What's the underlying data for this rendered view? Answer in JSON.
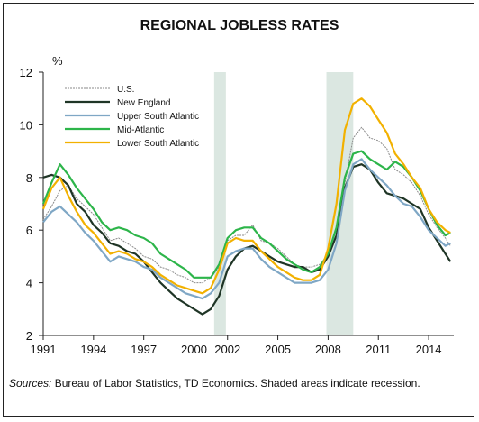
{
  "chart_data": {
    "type": "line",
    "title": "REGIONAL JOBLESS RATES",
    "ylabel": "%",
    "xlabel": "",
    "xlim": [
      1991,
      2015.5
    ],
    "ylim": [
      2,
      12
    ],
    "x_ticks": [
      1991,
      1994,
      1997,
      2000,
      2002,
      2005,
      2008,
      2011,
      2014
    ],
    "x_tick_labels": [
      "1991",
      "1994",
      "1997",
      "2000",
      "2002",
      "2005",
      "2008",
      "2011",
      "2014"
    ],
    "y_ticks": [
      2,
      4,
      6,
      8,
      10,
      12
    ],
    "y_tick_labels": [
      "2",
      "4",
      "6",
      "8",
      "10",
      "12"
    ],
    "grid": false,
    "legend_position": "top-left",
    "recessions": [
      [
        2001.2,
        2001.9
      ],
      [
        2007.9,
        2009.5
      ]
    ],
    "recession_color": "#dbe7e1",
    "source_label": "Sources:",
    "source_text": " Bureau of Labor Statistics, TD Economics. Shaded areas indicate recession.",
    "series": [
      {
        "name": "U.S.",
        "color": "#8a8a8a",
        "dash": "2,1",
        "width": 1,
        "points": [
          [
            1991,
            6.4
          ],
          [
            1991.5,
            6.9
          ],
          [
            1992,
            7.5
          ],
          [
            1992.5,
            7.7
          ],
          [
            1993,
            7.2
          ],
          [
            1993.5,
            6.9
          ],
          [
            1994,
            6.6
          ],
          [
            1994.5,
            6.1
          ],
          [
            1995,
            5.6
          ],
          [
            1995.5,
            5.7
          ],
          [
            1996,
            5.5
          ],
          [
            1996.5,
            5.3
          ],
          [
            1997,
            5.0
          ],
          [
            1997.5,
            4.9
          ],
          [
            1998,
            4.6
          ],
          [
            1998.5,
            4.5
          ],
          [
            1999,
            4.3
          ],
          [
            1999.5,
            4.2
          ],
          [
            2000,
            4.0
          ],
          [
            2000.5,
            4.0
          ],
          [
            2001,
            4.2
          ],
          [
            2001.5,
            4.6
          ],
          [
            2002,
            5.6
          ],
          [
            2002.5,
            5.8
          ],
          [
            2003,
            5.8
          ],
          [
            2003.5,
            6.2
          ],
          [
            2004,
            5.6
          ],
          [
            2004.5,
            5.5
          ],
          [
            2005,
            5.3
          ],
          [
            2005.5,
            5.0
          ],
          [
            2006,
            4.7
          ],
          [
            2006.5,
            4.6
          ],
          [
            2007,
            4.6
          ],
          [
            2007.5,
            4.7
          ],
          [
            2008,
            5.0
          ],
          [
            2008.5,
            5.8
          ],
          [
            2009,
            7.8
          ],
          [
            2009.5,
            9.5
          ],
          [
            2010,
            9.9
          ],
          [
            2010.5,
            9.5
          ],
          [
            2011,
            9.4
          ],
          [
            2011.5,
            9.1
          ],
          [
            2012,
            8.3
          ],
          [
            2012.5,
            8.1
          ],
          [
            2013,
            7.8
          ],
          [
            2013.5,
            7.3
          ],
          [
            2014,
            6.6
          ],
          [
            2014.5,
            6.1
          ],
          [
            2015,
            5.7
          ],
          [
            2015.3,
            5.4
          ]
        ]
      },
      {
        "name": "New England",
        "color": "#1f3526",
        "dash": "",
        "width": 2.2,
        "points": [
          [
            1991,
            8.0
          ],
          [
            1991.5,
            8.1
          ],
          [
            1992,
            8.0
          ],
          [
            1992.5,
            7.7
          ],
          [
            1993,
            7.0
          ],
          [
            1993.5,
            6.7
          ],
          [
            1994,
            6.2
          ],
          [
            1994.5,
            5.9
          ],
          [
            1995,
            5.5
          ],
          [
            1995.5,
            5.4
          ],
          [
            1996,
            5.2
          ],
          [
            1996.5,
            5.1
          ],
          [
            1997,
            4.8
          ],
          [
            1997.5,
            4.4
          ],
          [
            1998,
            4.0
          ],
          [
            1998.5,
            3.7
          ],
          [
            1999,
            3.4
          ],
          [
            1999.5,
            3.2
          ],
          [
            2000,
            3.0
          ],
          [
            2000.5,
            2.8
          ],
          [
            2001,
            3.0
          ],
          [
            2001.5,
            3.5
          ],
          [
            2002,
            4.5
          ],
          [
            2002.5,
            5.0
          ],
          [
            2003,
            5.3
          ],
          [
            2003.5,
            5.4
          ],
          [
            2004,
            5.2
          ],
          [
            2004.5,
            5.0
          ],
          [
            2005,
            4.8
          ],
          [
            2005.5,
            4.7
          ],
          [
            2006,
            4.6
          ],
          [
            2006.5,
            4.6
          ],
          [
            2007,
            4.4
          ],
          [
            2007.5,
            4.5
          ],
          [
            2008,
            5.0
          ],
          [
            2008.5,
            5.8
          ],
          [
            2009,
            7.6
          ],
          [
            2009.5,
            8.4
          ],
          [
            2010,
            8.5
          ],
          [
            2010.5,
            8.3
          ],
          [
            2011,
            7.8
          ],
          [
            2011.5,
            7.4
          ],
          [
            2012,
            7.3
          ],
          [
            2012.5,
            7.2
          ],
          [
            2013,
            7.0
          ],
          [
            2013.5,
            6.8
          ],
          [
            2014,
            6.1
          ],
          [
            2014.5,
            5.6
          ],
          [
            2015,
            5.1
          ],
          [
            2015.3,
            4.8
          ]
        ]
      },
      {
        "name": "Upper South Atlantic",
        "color": "#7fa7c5",
        "dash": "",
        "width": 2.2,
        "points": [
          [
            1991,
            6.3
          ],
          [
            1991.5,
            6.7
          ],
          [
            1992,
            6.9
          ],
          [
            1992.5,
            6.6
          ],
          [
            1993,
            6.3
          ],
          [
            1993.5,
            5.9
          ],
          [
            1994,
            5.6
          ],
          [
            1994.5,
            5.2
          ],
          [
            1995,
            4.8
          ],
          [
            1995.5,
            5.0
          ],
          [
            1996,
            4.9
          ],
          [
            1996.5,
            4.8
          ],
          [
            1997,
            4.6
          ],
          [
            1997.5,
            4.5
          ],
          [
            1998,
            4.2
          ],
          [
            1998.5,
            4.0
          ],
          [
            1999,
            3.8
          ],
          [
            1999.5,
            3.6
          ],
          [
            2000,
            3.5
          ],
          [
            2000.5,
            3.4
          ],
          [
            2001,
            3.6
          ],
          [
            2001.5,
            4.0
          ],
          [
            2002,
            5.0
          ],
          [
            2002.5,
            5.2
          ],
          [
            2003,
            5.3
          ],
          [
            2003.5,
            5.3
          ],
          [
            2004,
            4.9
          ],
          [
            2004.5,
            4.6
          ],
          [
            2005,
            4.4
          ],
          [
            2005.5,
            4.2
          ],
          [
            2006,
            4.0
          ],
          [
            2006.5,
            4.0
          ],
          [
            2007,
            4.0
          ],
          [
            2007.5,
            4.1
          ],
          [
            2008,
            4.5
          ],
          [
            2008.5,
            5.5
          ],
          [
            2009,
            7.5
          ],
          [
            2009.5,
            8.5
          ],
          [
            2010,
            8.7
          ],
          [
            2010.5,
            8.3
          ],
          [
            2011,
            8.0
          ],
          [
            2011.5,
            7.7
          ],
          [
            2012,
            7.3
          ],
          [
            2012.5,
            7.0
          ],
          [
            2013,
            6.9
          ],
          [
            2013.5,
            6.5
          ],
          [
            2014,
            6.0
          ],
          [
            2014.5,
            5.7
          ],
          [
            2015,
            5.4
          ],
          [
            2015.3,
            5.5
          ]
        ]
      },
      {
        "name": "Mid-Atlantic",
        "color": "#2db54a",
        "dash": "",
        "width": 2.2,
        "points": [
          [
            1991,
            7.0
          ],
          [
            1991.5,
            7.8
          ],
          [
            1992,
            8.5
          ],
          [
            1992.5,
            8.1
          ],
          [
            1993,
            7.6
          ],
          [
            1993.5,
            7.2
          ],
          [
            1994,
            6.8
          ],
          [
            1994.5,
            6.3
          ],
          [
            1995,
            6.0
          ],
          [
            1995.5,
            6.1
          ],
          [
            1996,
            6.0
          ],
          [
            1996.5,
            5.8
          ],
          [
            1997,
            5.7
          ],
          [
            1997.5,
            5.5
          ],
          [
            1998,
            5.1
          ],
          [
            1998.5,
            4.9
          ],
          [
            1999,
            4.7
          ],
          [
            1999.5,
            4.5
          ],
          [
            2000,
            4.2
          ],
          [
            2000.5,
            4.2
          ],
          [
            2001,
            4.2
          ],
          [
            2001.5,
            4.7
          ],
          [
            2002,
            5.7
          ],
          [
            2002.5,
            6.0
          ],
          [
            2003,
            6.1
          ],
          [
            2003.5,
            6.1
          ],
          [
            2004,
            5.7
          ],
          [
            2004.5,
            5.5
          ],
          [
            2005,
            5.2
          ],
          [
            2005.5,
            4.9
          ],
          [
            2006,
            4.7
          ],
          [
            2006.5,
            4.5
          ],
          [
            2007,
            4.4
          ],
          [
            2007.5,
            4.6
          ],
          [
            2008,
            5.1
          ],
          [
            2008.5,
            6.1
          ],
          [
            2009,
            8.0
          ],
          [
            2009.5,
            8.9
          ],
          [
            2010,
            9.0
          ],
          [
            2010.5,
            8.7
          ],
          [
            2011,
            8.5
          ],
          [
            2011.5,
            8.3
          ],
          [
            2012,
            8.6
          ],
          [
            2012.5,
            8.4
          ],
          [
            2013,
            8.0
          ],
          [
            2013.5,
            7.5
          ],
          [
            2014,
            6.8
          ],
          [
            2014.5,
            6.2
          ],
          [
            2015,
            5.8
          ],
          [
            2015.3,
            5.9
          ]
        ]
      },
      {
        "name": "Lower South Atlantic",
        "color": "#f2b100",
        "dash": "",
        "width": 2.2,
        "points": [
          [
            1991,
            6.8
          ],
          [
            1991.5,
            7.6
          ],
          [
            1992,
            8.0
          ],
          [
            1992.5,
            7.3
          ],
          [
            1993,
            6.7
          ],
          [
            1993.5,
            6.2
          ],
          [
            1994,
            5.9
          ],
          [
            1994.5,
            5.5
          ],
          [
            1995,
            5.1
          ],
          [
            1995.5,
            5.2
          ],
          [
            1996,
            5.1
          ],
          [
            1996.5,
            4.9
          ],
          [
            1997,
            4.8
          ],
          [
            1997.5,
            4.6
          ],
          [
            1998,
            4.3
          ],
          [
            1998.5,
            4.1
          ],
          [
            1999,
            3.9
          ],
          [
            1999.5,
            3.8
          ],
          [
            2000,
            3.7
          ],
          [
            2000.5,
            3.6
          ],
          [
            2001,
            3.8
          ],
          [
            2001.5,
            4.5
          ],
          [
            2002,
            5.5
          ],
          [
            2002.5,
            5.7
          ],
          [
            2003,
            5.6
          ],
          [
            2003.5,
            5.6
          ],
          [
            2004,
            5.2
          ],
          [
            2004.5,
            4.9
          ],
          [
            2005,
            4.6
          ],
          [
            2005.5,
            4.4
          ],
          [
            2006,
            4.2
          ],
          [
            2006.5,
            4.1
          ],
          [
            2007,
            4.1
          ],
          [
            2007.5,
            4.3
          ],
          [
            2008,
            5.3
          ],
          [
            2008.5,
            7.0
          ],
          [
            2009,
            9.8
          ],
          [
            2009.5,
            10.8
          ],
          [
            2010,
            11.0
          ],
          [
            2010.5,
            10.7
          ],
          [
            2011,
            10.2
          ],
          [
            2011.5,
            9.7
          ],
          [
            2012,
            8.9
          ],
          [
            2012.5,
            8.5
          ],
          [
            2013,
            8.0
          ],
          [
            2013.5,
            7.6
          ],
          [
            2014,
            6.8
          ],
          [
            2014.5,
            6.3
          ],
          [
            2015,
            6.0
          ],
          [
            2015.3,
            5.9
          ]
        ]
      }
    ]
  }
}
